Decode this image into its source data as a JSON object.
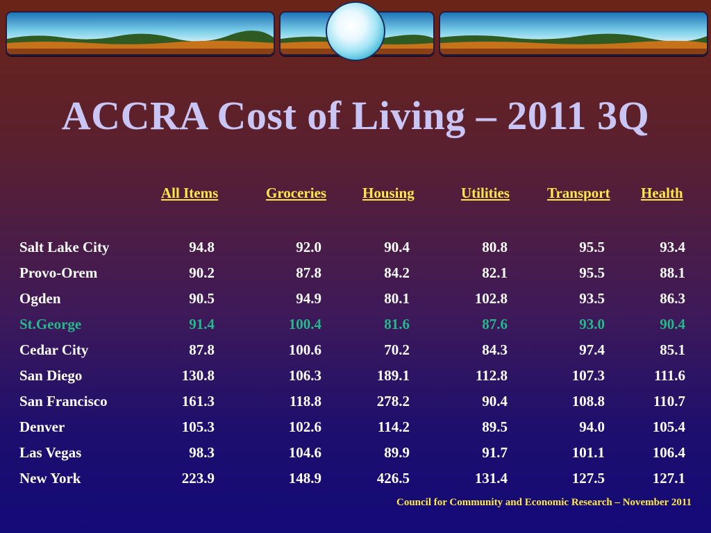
{
  "title": "ACCRA Cost of Living – 2011 3Q",
  "columns": [
    "All Items",
    "Groceries",
    "Housing",
    "Utilities",
    "Transport",
    "Health"
  ],
  "rows": [
    {
      "city": "Salt Lake City",
      "values": [
        "94.8",
        "92.0",
        "90.4",
        "80.8",
        "95.5",
        "93.4"
      ]
    },
    {
      "city": "Provo-Orem",
      "values": [
        "90.2",
        "87.8",
        "84.2",
        "82.1",
        "95.5",
        "88.1"
      ]
    },
    {
      "city": "Ogden",
      "values": [
        "90.5",
        "94.9",
        "80.1",
        "102.8",
        "93.5",
        "86.3"
      ]
    },
    {
      "city": "St.George",
      "values": [
        "91.4",
        "100.4",
        "81.6",
        "87.6",
        "93.0",
        "90.4"
      ],
      "highlight": true
    },
    {
      "city": "Cedar City",
      "values": [
        "87.8",
        "100.6",
        "70.2",
        "84.3",
        "97.4",
        "85.1"
      ]
    },
    {
      "city": "San Diego",
      "values": [
        "130.8",
        "106.3",
        "189.1",
        "112.8",
        "107.3",
        "111.6"
      ]
    },
    {
      "city": "San Francisco",
      "values": [
        "161.3",
        "118.8",
        "278.2",
        "90.4",
        "108.8",
        "110.7"
      ]
    },
    {
      "city": "Denver",
      "values": [
        "105.3",
        "102.6",
        "114.2",
        "89.5",
        "94.0",
        "105.4"
      ]
    },
    {
      "city": "Las Vegas",
      "values": [
        "98.3",
        "104.6",
        "89.9",
        "91.7",
        "101.1",
        "106.4"
      ]
    },
    {
      "city": "New York",
      "values": [
        "223.9",
        "148.9",
        "426.5",
        "131.4",
        "127.5",
        "127.1"
      ]
    }
  ],
  "footer": "Council for Community and Economic Research – November 2011",
  "colors": {
    "title": "#c9c6f5",
    "header": "#ffe84a",
    "highlight": "#27b88a",
    "text": "#ffffff"
  }
}
